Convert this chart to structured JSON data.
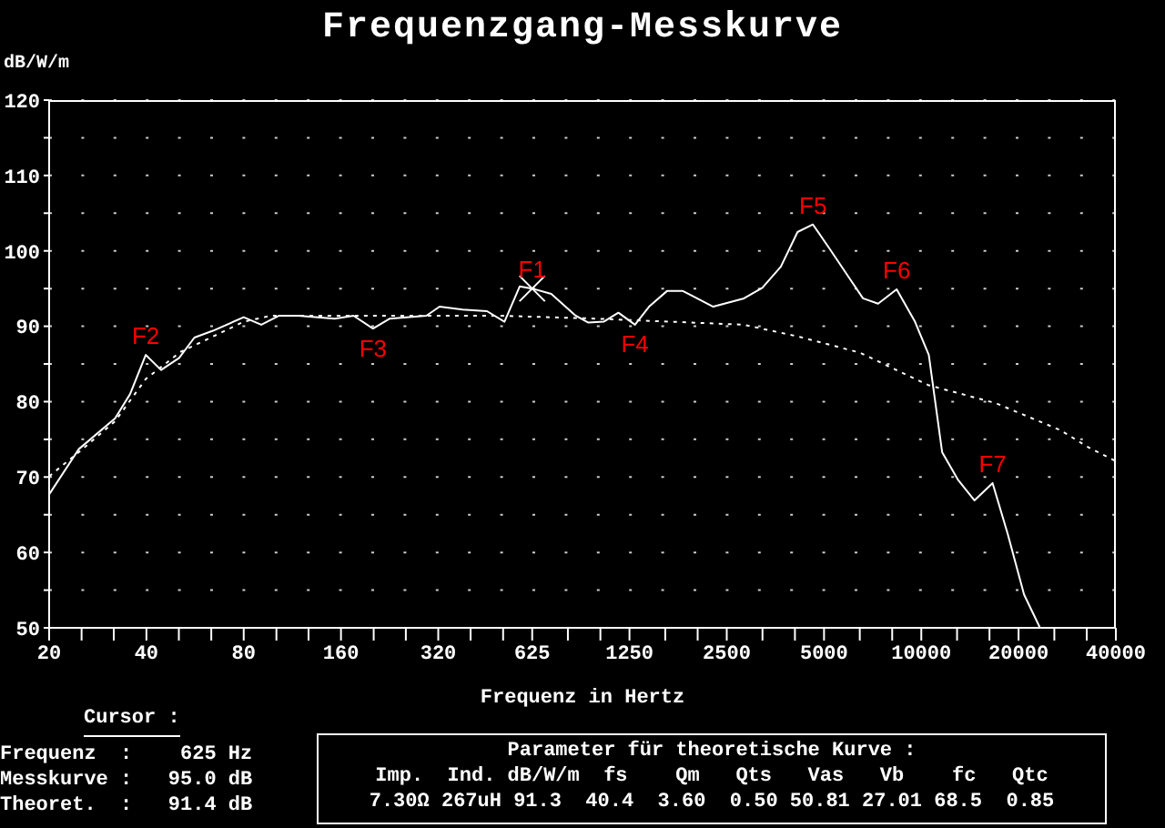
{
  "chart_data": {
    "type": "line",
    "title": "Frequenzgang-Messkurve",
    "ylabel": "dB/W/m",
    "xlabel": "Frequenz in Hertz",
    "log": "x",
    "grid": true,
    "marker": "none",
    "xlim": [
      20,
      40000
    ],
    "xticks": [
      20,
      {
        "value": 25.2,
        "label": null
      },
      {
        "value": 31.7,
        "label": null
      },
      40,
      {
        "value": 50.4,
        "label": null
      },
      {
        "value": 63.5,
        "label": null
      },
      80,
      {
        "value": 101,
        "label": null
      },
      {
        "value": 127,
        "label": null
      },
      160,
      {
        "value": 202,
        "label": null
      },
      {
        "value": 254,
        "label": null
      },
      320,
      {
        "value": 403,
        "label": null
      },
      {
        "value": 508,
        "label": null
      },
      625,
      {
        "value": 806,
        "label": null
      },
      {
        "value": 1016,
        "label": null
      },
      1250,
      {
        "value": 1613,
        "label": null
      },
      {
        "value": 2032,
        "label": null
      },
      2500,
      {
        "value": 3225,
        "label": null
      },
      {
        "value": 4064,
        "label": null
      },
      5000,
      {
        "value": 6451,
        "label": null
      },
      {
        "value": 8127,
        "label": null
      },
      10000,
      {
        "value": 12902,
        "label": null
      },
      {
        "value": 16255,
        "label": null
      },
      20000,
      {
        "value": 25804,
        "label": null
      },
      {
        "value": 32510,
        "label": null
      },
      40000
    ],
    "ylim": [
      50,
      120
    ],
    "yticks": [
      50,
      {
        "value": 55,
        "label": null
      },
      60,
      {
        "value": 65,
        "label": null
      },
      70,
      {
        "value": 75,
        "label": null
      },
      80,
      {
        "value": 85,
        "label": null
      },
      90,
      {
        "value": 95,
        "label": null
      },
      100,
      {
        "value": 105,
        "label": null
      },
      110,
      {
        "value": 115,
        "label": null
      },
      120
    ],
    "series": [
      {
        "color": "#ffffff",
        "line_style": "solid",
        "x": [
          20,
          24.7,
          32,
          35.6,
          39.8,
          44.4,
          50.5,
          56.3,
          64.2,
          80,
          90.7,
          103,
          118,
          153,
          175,
          201,
          226,
          294,
          323,
          381,
          453,
          513,
          572,
          625,
          716,
          852,
          930,
          1040,
          1155,
          1300,
          1437,
          1636,
          1823,
          2270,
          2826,
          3220,
          3675,
          4140,
          4620,
          5200,
          5920,
          6600,
          7350,
          8390,
          9560,
          10550,
          11600,
          12960,
          14600,
          16620,
          18500,
          20800,
          23300
        ],
        "values": [
          67.7,
          73.7,
          77.8,
          81.0,
          86.2,
          84.2,
          85.8,
          88.5,
          89.4,
          91.2,
          90.2,
          91.4,
          91.4,
          91.0,
          91.4,
          89.7,
          91.0,
          91.4,
          92.6,
          92.2,
          92.0,
          90.6,
          95.3,
          95.0,
          94.3,
          91.4,
          90.5,
          90.6,
          91.8,
          90.2,
          92.6,
          94.7,
          94.7,
          92.6,
          93.7,
          95.1,
          97.9,
          102.5,
          103.5,
          100.3,
          96.7,
          93.7,
          93.0,
          94.9,
          90.6,
          86.2,
          73.3,
          69.7,
          66.9,
          69.2,
          62.5,
          54.4,
          50.0
        ]
      },
      {
        "color": "#ffffff",
        "line_style": "dotted",
        "x": [
          20,
          24.7,
          32,
          39.8,
          51,
          64,
          80,
          97,
          200,
          500,
          1000,
          1680,
          2826,
          4200,
          6450,
          10500,
          17000,
          27000,
          33000,
          40000
        ],
        "values": [
          70.1,
          73.3,
          77.4,
          83.0,
          86.6,
          88.6,
          90.6,
          91.4,
          91.4,
          91.4,
          91.0,
          90.6,
          90.2,
          88.6,
          86.5,
          82.2,
          79.8,
          76.2,
          73.9,
          72.1
        ]
      }
    ],
    "annotations": [
      {
        "text": "F1",
        "x": 625,
        "y": 95.0
      },
      {
        "text": "F2",
        "x": 39.8,
        "y": 86.2
      },
      {
        "text": "F3",
        "x": 201,
        "y": 89.7
      },
      {
        "text": "F4",
        "x": 1300,
        "y": 90.2
      },
      {
        "text": "F5",
        "x": 4620,
        "y": 103.5
      },
      {
        "text": "F6",
        "x": 8390,
        "y": 94.9
      },
      {
        "text": "F7",
        "x": 16620,
        "y": 69.2
      },
      "Cursor :",
      "Frequenz  :    625 Hz",
      "Messkurve :   95.0 dB",
      "Theoret.  :   91.4 dB",
      "Parameter für theoretische Kurve :",
      "Imp.  Ind. dB/W/m  fs    Qm   Qts   Vas   Vb    fc   Qtc",
      "7.30Ω 267uH 91.3  40.4  3.60  0.50 50.81 27.01 68.5  0.85"
    ]
  }
}
